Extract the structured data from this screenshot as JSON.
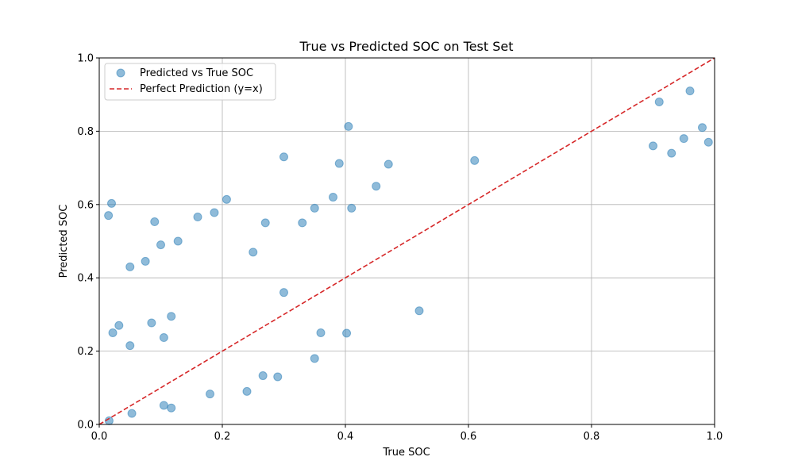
{
  "chart_data": {
    "type": "scatter",
    "title": "True vs Predicted SOC on Test Set",
    "xlabel": "True SOC",
    "ylabel": "Predicted SOC",
    "xlim": [
      0,
      1
    ],
    "ylim": [
      0,
      1
    ],
    "xticks": [
      "0.0",
      "0.2",
      "0.4",
      "0.6",
      "0.8",
      "1.0"
    ],
    "yticks": [
      "0.0",
      "0.2",
      "0.4",
      "0.6",
      "0.8",
      "1.0"
    ],
    "grid": true,
    "legend_position": "upper-left",
    "series": [
      {
        "name": "Predicted vs True SOC",
        "kind": "scatter",
        "color": "#1f77b4",
        "alpha": 0.5,
        "points": [
          [
            0.02,
            0.603
          ],
          [
            0.05,
            0.43
          ],
          [
            0.075,
            0.445
          ],
          [
            0.09,
            0.553
          ],
          [
            0.1,
            0.49
          ],
          [
            0.128,
            0.5
          ],
          [
            0.16,
            0.566
          ],
          [
            0.187,
            0.578
          ],
          [
            0.207,
            0.614
          ],
          [
            0.3,
            0.73
          ],
          [
            0.405,
            0.813
          ],
          [
            0.39,
            0.712
          ],
          [
            0.05,
            0.215
          ],
          [
            0.032,
            0.27
          ],
          [
            0.022,
            0.25
          ],
          [
            0.085,
            0.277
          ],
          [
            0.117,
            0.295
          ],
          [
            0.105,
            0.237
          ],
          [
            0.402,
            0.249
          ],
          [
            0.52,
            0.31
          ],
          [
            0.29,
            0.13
          ],
          [
            0.266,
            0.133
          ],
          [
            0.35,
            0.18
          ],
          [
            0.24,
            0.09
          ],
          [
            0.18,
            0.083
          ],
          [
            0.117,
            0.045
          ],
          [
            0.105,
            0.052
          ],
          [
            0.053,
            0.03
          ],
          [
            0.016,
            0.01
          ],
          [
            0.3,
            0.36
          ],
          [
            0.38,
            0.62
          ],
          [
            0.47,
            0.71
          ],
          [
            0.45,
            0.65
          ],
          [
            0.61,
            0.72
          ],
          [
            0.9,
            0.76
          ],
          [
            0.95,
            0.78
          ],
          [
            0.98,
            0.81
          ],
          [
            0.99,
            0.77
          ],
          [
            0.96,
            0.91
          ],
          [
            0.91,
            0.88
          ],
          [
            0.93,
            0.74
          ],
          [
            0.33,
            0.55
          ],
          [
            0.35,
            0.59
          ],
          [
            0.27,
            0.55
          ],
          [
            0.25,
            0.47
          ],
          [
            0.36,
            0.25
          ],
          [
            0.41,
            0.59
          ],
          [
            0.015,
            0.57
          ]
        ]
      },
      {
        "name": "Perfect Prediction (y=x)",
        "kind": "line",
        "color": "#d62728",
        "dash": "dashed",
        "points": [
          [
            0,
            0
          ],
          [
            1,
            1
          ]
        ]
      }
    ]
  }
}
